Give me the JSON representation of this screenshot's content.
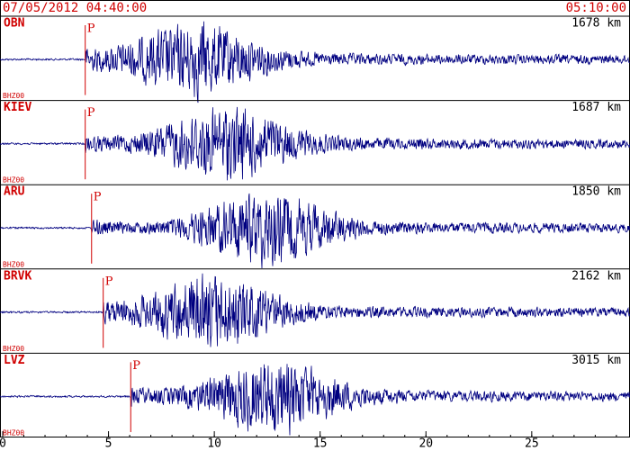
{
  "header": {
    "start": "07/05/2012 04:40:00",
    "end": "05:10:00"
  },
  "chart_data": {
    "type": "seismogram",
    "xlim": [
      0,
      29.6
    ],
    "xticks": [
      0,
      5,
      10,
      15,
      20,
      25
    ],
    "stations": [
      {
        "name": "OBN",
        "distance": "1678 km",
        "channel": "BHZ00",
        "phase": "P",
        "p_arrival": 3.9
      },
      {
        "name": "KIEV",
        "distance": "1687 km",
        "channel": "BHZ00",
        "phase": "P",
        "p_arrival": 3.9
      },
      {
        "name": "ARU",
        "distance": "1850 km",
        "channel": "BHZ00",
        "phase": "P",
        "p_arrival": 4.2
      },
      {
        "name": "BRVK",
        "distance": "2162 km",
        "channel": "BHZ00",
        "phase": "P",
        "p_arrival": 4.75
      },
      {
        "name": "LVZ",
        "distance": "3015 km",
        "channel": "BHZ00",
        "phase": "P",
        "p_arrival": 6.05
      }
    ]
  }
}
